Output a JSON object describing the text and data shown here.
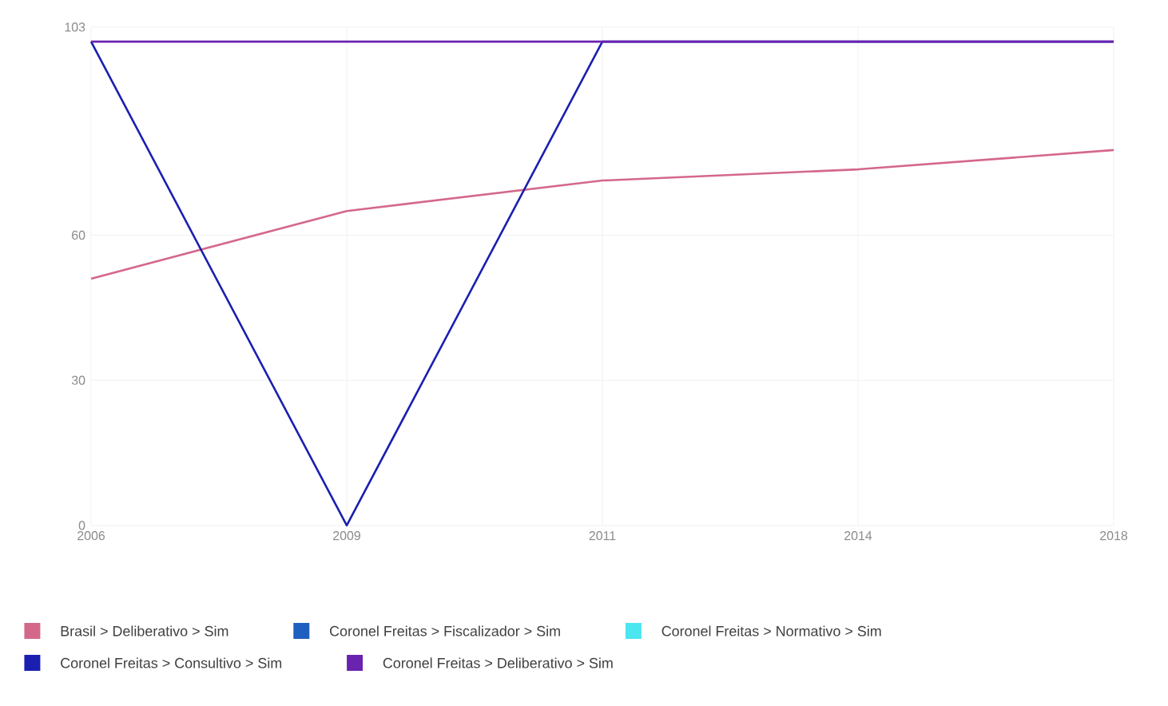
{
  "chart_data": {
    "type": "line",
    "categories": [
      "2006",
      "2009",
      "2011",
      "2014",
      "2018"
    ],
    "series": [
      {
        "name": "Brasil > Deliberativo > Sim",
        "color": "#d4688a",
        "values": [
          51,
          65,
          71.3,
          73.6,
          77.6
        ]
      },
      {
        "name": "Coronel Freitas > Fiscalizador > Sim",
        "color": "#1f5fbf",
        "values": [
          null,
          null,
          null,
          null,
          null
        ]
      },
      {
        "name": "Coronel Freitas > Normativo > Sim",
        "color": "#4ce6f0",
        "values": [
          null,
          null,
          null,
          null,
          null
        ]
      },
      {
        "name": "Coronel Freitas > Consultivo > Sim",
        "color": "#1a1fb0",
        "values": [
          100,
          0,
          100,
          100,
          100
        ]
      },
      {
        "name": "Coronel Freitas > Deliberativo > Sim",
        "color": "#6a22b0",
        "values": [
          100,
          100,
          100,
          100,
          100
        ]
      }
    ],
    "ylim": [
      0,
      103
    ],
    "yticks": [
      0,
      30,
      60,
      103
    ],
    "grid": true,
    "legend": "bottom",
    "marker": "none",
    "line_style": "solid"
  }
}
